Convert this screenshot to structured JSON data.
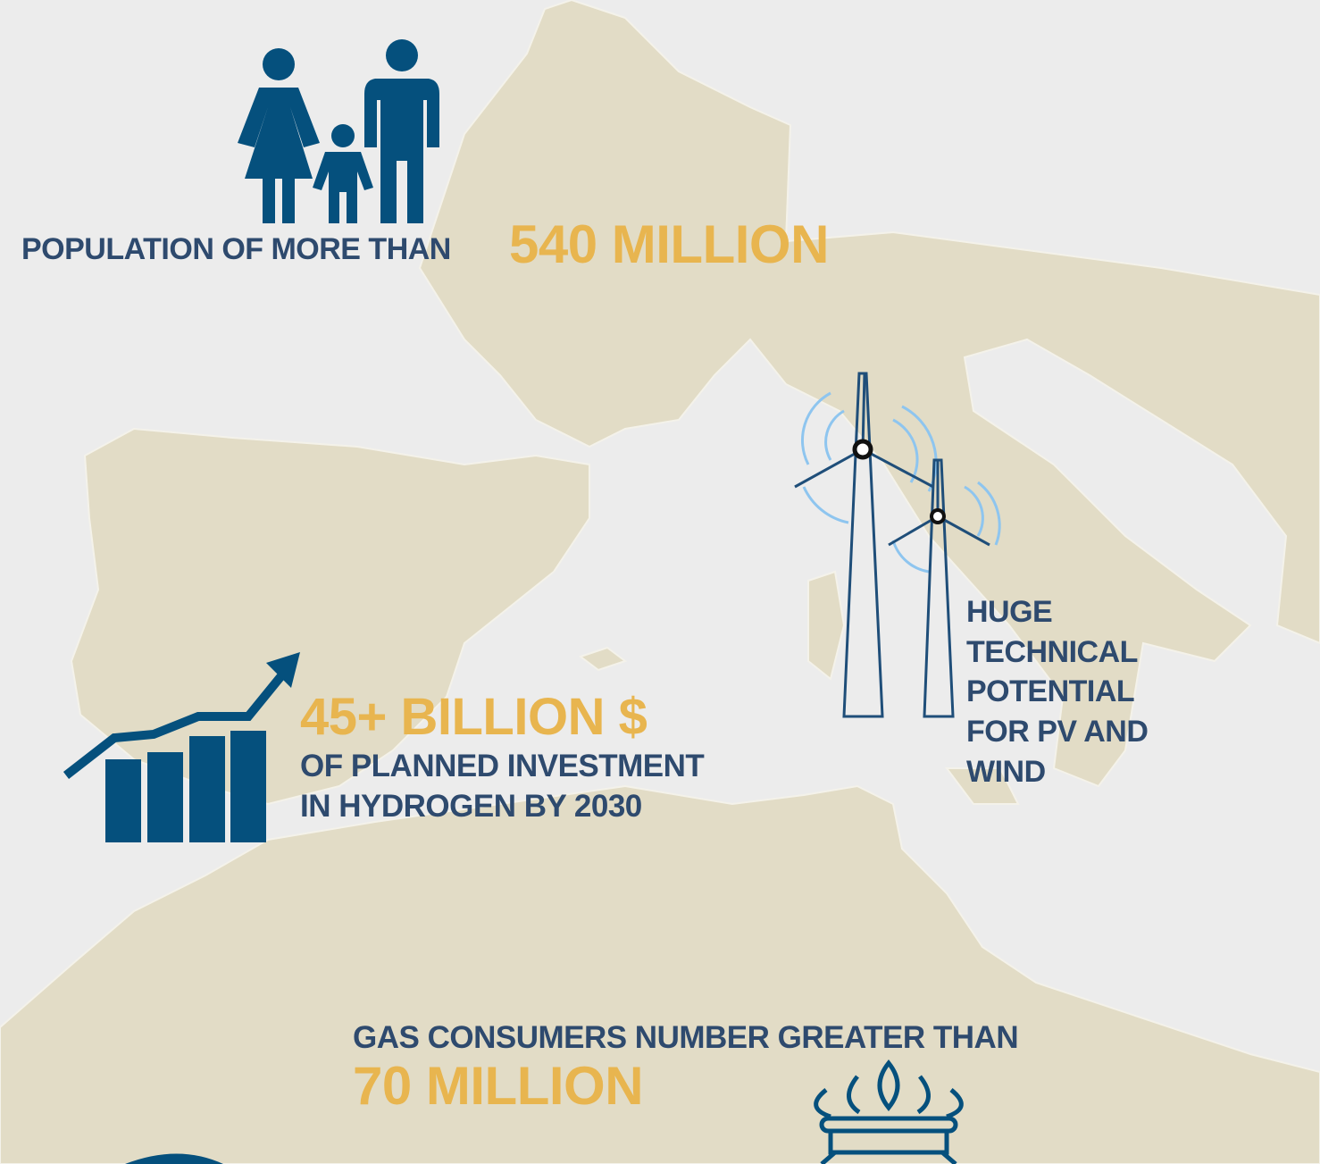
{
  "population": {
    "label": "POPULATION OF MORE THAN",
    "value": "540 MILLION"
  },
  "investment": {
    "value": "45+ BILLION $",
    "lines": [
      "OF PLANNED INVESTMENT",
      "IN HYDROGEN BY 2030"
    ]
  },
  "potential": {
    "lines": [
      "HUGE",
      "TECHNICAL",
      "POTENTIAL",
      "FOR PV AND",
      "WIND"
    ]
  },
  "gas": {
    "label": "GAS CONSUMERS NUMBER GREATER THAN",
    "value": "70 MILLION"
  }
}
